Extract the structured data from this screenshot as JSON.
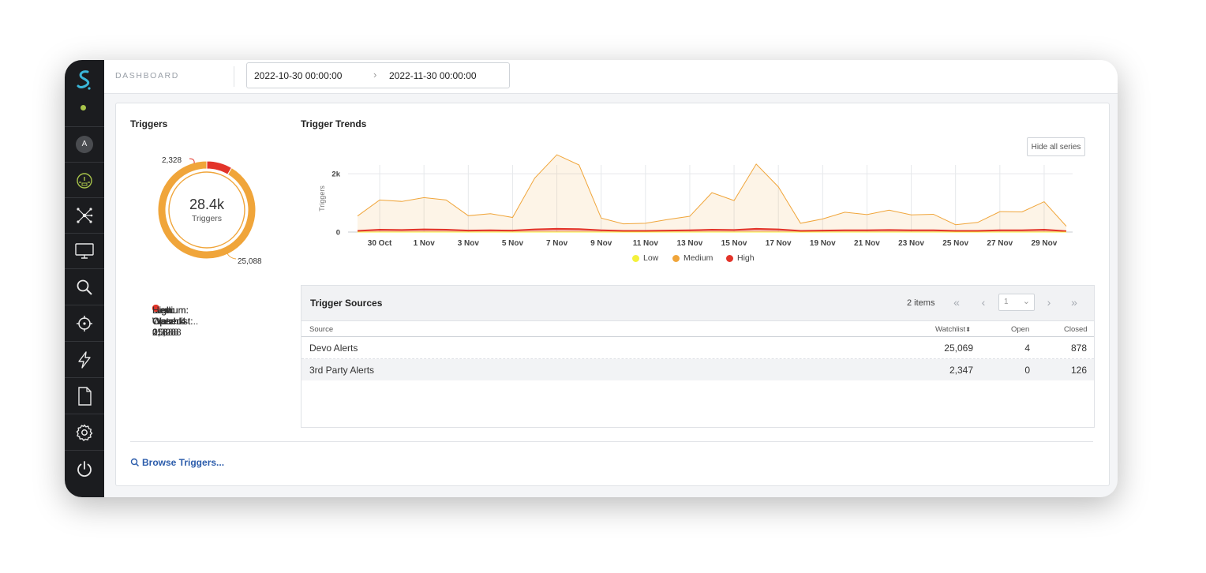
{
  "header": {
    "breadcrumb": "DASHBOARD",
    "date_from": "2022-10-30 00:00:00",
    "date_to": "2022-11-30 00:00:00"
  },
  "sidebar": {
    "avatar_initial": "A",
    "status_color": "#a8c44a",
    "active_color": "#a8c44a",
    "items": [
      {
        "icon": "logo-icon"
      },
      {
        "icon": "avatar"
      },
      {
        "icon": "dashboard-gauge-icon",
        "active": true
      },
      {
        "icon": "network-graph-icon"
      },
      {
        "icon": "monitor-icon"
      },
      {
        "icon": "search-icon"
      },
      {
        "icon": "crosshair-target-icon"
      },
      {
        "icon": "lightning-icon"
      },
      {
        "icon": "document-icon"
      },
      {
        "icon": "gear-icon"
      },
      {
        "icon": "power-icon"
      }
    ]
  },
  "triggers": {
    "title": "Triggers",
    "total": "28.4k",
    "total_label": "Triggers",
    "high_label": "2,328",
    "medium_label": "25,088",
    "legend": [
      {
        "label": "Low: Watchlist: 0",
        "color": "#f4f13b"
      },
      {
        "label": "Low: Open: 0",
        "color": "#f4f13b"
      },
      {
        "label": "Low: Closed: 0",
        "color": "#f4f13b"
      },
      {
        "label": "Medium: Watchlist... 25,088",
        "color": "#f0a53a"
      },
      {
        "label": "Medium: Open: 4",
        "color": "#f0a53a"
      },
      {
        "label": "Medium: Closed: ... 888",
        "color": "#f0a53a"
      },
      {
        "label": "High: Watchlist: 2,328",
        "color": "#e3342a"
      },
      {
        "label": "High: Open: 0",
        "color": "#e3342a"
      },
      {
        "label": "High: Closed: 116",
        "color": "#e3342a"
      }
    ]
  },
  "trends": {
    "title": "Trigger Trends",
    "hide_button": "Hide all series",
    "legend": [
      {
        "label": "Low",
        "color": "#f4f13b"
      },
      {
        "label": "Medium",
        "color": "#f0a53a"
      },
      {
        "label": "High",
        "color": "#e3342a"
      }
    ]
  },
  "chart_data": [
    {
      "type": "pie",
      "categories": [
        "Medium",
        "High"
      ],
      "values": [
        25088,
        2328
      ],
      "title": "Triggers"
    },
    {
      "type": "area",
      "title": "Trigger Trends",
      "xlabel": "",
      "ylabel": "Triggers",
      "ylim": [
        0,
        2300
      ],
      "yticks": [
        0,
        2000
      ],
      "ytick_labels": [
        "0",
        "2k"
      ],
      "x": [
        "29 Oct",
        "30 Oct",
        "31 Oct",
        "1 Nov",
        "2 Nov",
        "3 Nov",
        "4 Nov",
        "5 Nov",
        "6 Nov",
        "7 Nov",
        "8 Nov",
        "9 Nov",
        "10 Nov",
        "11 Nov",
        "12 Nov",
        "13 Nov",
        "14 Nov",
        "15 Nov",
        "16 Nov",
        "17 Nov",
        "18 Nov",
        "19 Nov",
        "20 Nov",
        "21 Nov",
        "22 Nov",
        "23 Nov",
        "24 Nov",
        "25 Nov",
        "26 Nov",
        "27 Nov",
        "28 Nov",
        "29 Nov",
        "30 Nov"
      ],
      "xtick_labels": [
        "30 Oct",
        "1 Nov",
        "3 Nov",
        "5 Nov",
        "7 Nov",
        "9 Nov",
        "11 Nov",
        "13 Nov",
        "15 Nov",
        "17 Nov",
        "19 Nov",
        "21 Nov",
        "23 Nov",
        "25 Nov",
        "27 Nov",
        "29 Nov"
      ],
      "series": [
        {
          "name": "Low",
          "values": [
            0,
            0,
            0,
            0,
            0,
            0,
            0,
            0,
            0,
            0,
            0,
            0,
            0,
            0,
            0,
            0,
            0,
            0,
            0,
            0,
            0,
            0,
            0,
            0,
            0,
            0,
            0,
            0,
            0,
            0,
            0,
            0,
            0
          ]
        },
        {
          "name": "Medium",
          "values": [
            550,
            1100,
            1050,
            1180,
            1100,
            560,
            630,
            500,
            1850,
            2650,
            2300,
            480,
            280,
            300,
            430,
            540,
            1350,
            1080,
            2330,
            1550,
            300,
            450,
            680,
            600,
            750,
            590,
            610,
            250,
            330,
            700,
            690,
            1040,
            200
          ]
        },
        {
          "name": "High",
          "values": [
            40,
            80,
            70,
            90,
            80,
            50,
            60,
            50,
            90,
            110,
            100,
            60,
            40,
            40,
            50,
            60,
            80,
            70,
            110,
            90,
            40,
            50,
            60,
            60,
            70,
            60,
            60,
            40,
            40,
            60,
            60,
            80,
            30
          ]
        }
      ],
      "grid": true
    }
  ],
  "sources": {
    "title": "Trigger Sources",
    "items_count": "2 items",
    "page": "1",
    "columns": [
      "Source",
      "Watchlist",
      "Open",
      "Closed"
    ],
    "rows": [
      {
        "source": "Devo Alerts",
        "watchlist": "25,069",
        "open": "4",
        "closed": "878"
      },
      {
        "source": "3rd Party Alerts",
        "watchlist": "2,347",
        "open": "0",
        "closed": "126"
      }
    ]
  },
  "footer": {
    "browse": "Browse Triggers..."
  }
}
